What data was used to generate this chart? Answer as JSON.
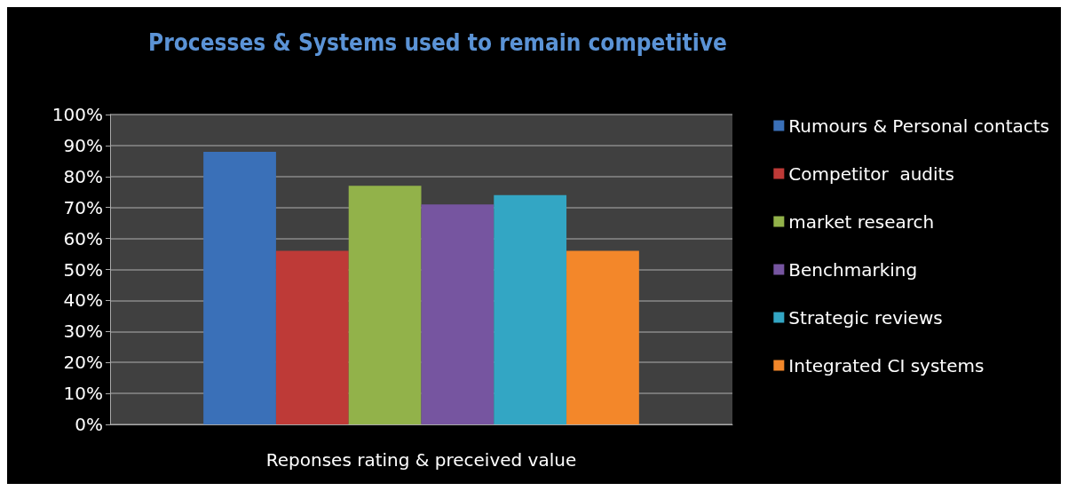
{
  "chart_data": {
    "type": "bar",
    "title": "Processes & Systems used to remain competitive",
    "categories": [
      "Reponses rating & preceived value"
    ],
    "series": [
      {
        "name": "Rumours & Personal contacts",
        "color": "#3a70b8",
        "values": [
          88
        ]
      },
      {
        "name": "Competitor  audits",
        "color": "#be3a37",
        "values": [
          56
        ]
      },
      {
        "name": "market research",
        "color": "#92b24a",
        "values": [
          77
        ]
      },
      {
        "name": "Benchmarking",
        "color": "#7655a0",
        "values": [
          71
        ]
      },
      {
        "name": "Strategic reviews",
        "color": "#33a6c4",
        "values": [
          74
        ]
      },
      {
        "name": "Integrated CI systems",
        "color": "#f3872a",
        "values": [
          56
        ]
      }
    ],
    "ylim": [
      0,
      100
    ],
    "yticks": [
      {
        "value": 0,
        "label": "0%"
      },
      {
        "value": 10,
        "label": "10%"
      },
      {
        "value": 20,
        "label": "20%"
      },
      {
        "value": 30,
        "label": "30%"
      },
      {
        "value": 40,
        "label": "40%"
      },
      {
        "value": 50,
        "label": "50%"
      },
      {
        "value": 60,
        "label": "60%"
      },
      {
        "value": 70,
        "label": "70%"
      },
      {
        "value": 80,
        "label": "80%"
      },
      {
        "value": 90,
        "label": "90%"
      },
      {
        "value": 100,
        "label": "100%"
      }
    ],
    "grid": "y",
    "legend": "right"
  }
}
